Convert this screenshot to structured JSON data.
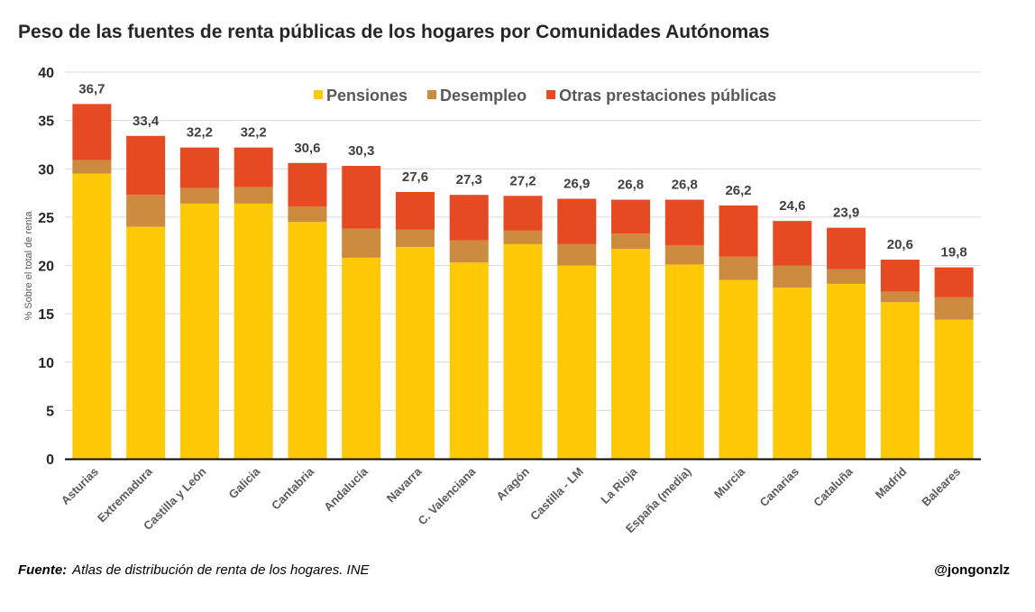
{
  "chart_data": {
    "type": "bar",
    "stacked": true,
    "title": "Peso de las fuentes de renta públicas de los hogares por Comunidades Autónomas",
    "xlabel": "",
    "ylabel": "% Sobre el total de renta",
    "ylim": [
      0,
      40
    ],
    "yticks": [
      0,
      5,
      10,
      15,
      20,
      25,
      30,
      35,
      40
    ],
    "grid": true,
    "legend_position": "top-center",
    "categories": [
      "Asturias",
      "Extremadura",
      "Castilla y León",
      "Galicia",
      "Cantabria",
      "Andalucía",
      "Navarra",
      "C. Valenciana",
      "Aragón",
      "Castilla - LM",
      "La Rioja",
      "España (media)",
      "Murcia",
      "Canarias",
      "Cataluña",
      "Madrid",
      "Baleares"
    ],
    "series": [
      {
        "name": "Pensiones",
        "color": "#FFC906",
        "values": [
          29.5,
          24.0,
          26.4,
          26.4,
          24.5,
          20.8,
          21.9,
          20.3,
          22.2,
          20.0,
          21.7,
          20.1,
          18.5,
          17.7,
          18.1,
          16.2,
          14.4
        ]
      },
      {
        "name": "Desempleo",
        "color": "#CD8B3F",
        "values": [
          1.4,
          3.3,
          1.6,
          1.7,
          1.6,
          3.0,
          1.8,
          2.3,
          1.4,
          2.2,
          1.6,
          2.0,
          2.4,
          2.3,
          1.5,
          1.1,
          2.3
        ]
      },
      {
        "name": "Otras prestaciones públicas",
        "color": "#E54A23",
        "values": [
          5.8,
          6.1,
          4.2,
          4.1,
          4.5,
          6.5,
          3.9,
          4.7,
          3.6,
          4.7,
          3.5,
          4.7,
          5.3,
          4.6,
          4.3,
          3.3,
          3.1
        ]
      }
    ],
    "totals": [
      "36,7",
      "33,4",
      "32,2",
      "32,2",
      "30,6",
      "30,3",
      "27,6",
      "27,3",
      "27,2",
      "26,9",
      "26,8",
      "26,8",
      "26,2",
      "24,6",
      "23,9",
      "20,6",
      "19,8"
    ]
  },
  "footer": {
    "source_label": "Fuente:",
    "source_text": "Atlas de distribución de renta de los hogares. INE",
    "handle": "@jongonzlz"
  }
}
